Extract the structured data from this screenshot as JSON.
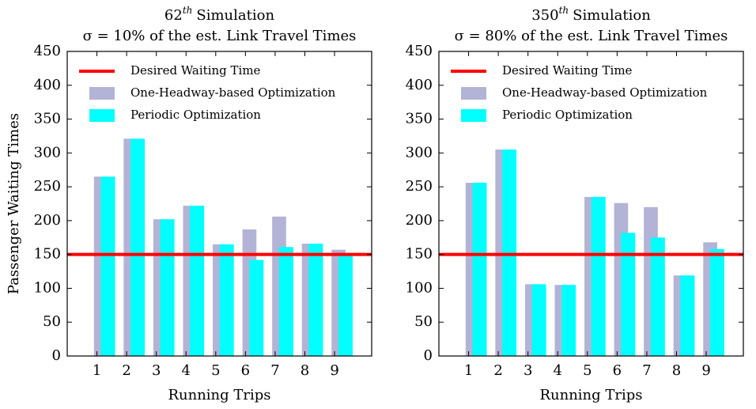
{
  "chart_data": [
    {
      "type": "bar",
      "title": [
        "62",
        "th",
        "Simulation"
      ],
      "subtitle": "σ = 10% of the est. Link Travel Times",
      "xlabel": "Running Trips",
      "ylabel": "Passenger Waiting Times",
      "x": [
        1,
        2,
        3,
        4,
        5,
        6,
        7,
        8,
        9
      ],
      "xlim": [
        0,
        10.25
      ],
      "xticks": [
        1,
        2,
        3,
        4,
        5,
        6,
        7,
        8,
        9
      ],
      "ylim": [
        0,
        450
      ],
      "yticks": [
        0,
        50,
        100,
        150,
        200,
        250,
        300,
        350,
        400,
        450
      ],
      "legend": "upper left",
      "reference_line": {
        "name": "Desired Waiting Time",
        "color": "#ff0000",
        "value": 150
      },
      "series": [
        {
          "name": "One-Headway-based Optimization",
          "color": "#b3b3d6",
          "values": [
            265,
            321,
            202,
            222,
            165,
            187,
            206,
            166,
            157
          ]
        },
        {
          "name": "Periodic Optimization",
          "color": "#00ffff",
          "values": [
            265,
            321,
            202,
            222,
            165,
            142,
            161,
            166,
            148
          ]
        }
      ]
    },
    {
      "type": "bar",
      "title": [
        "350",
        "th",
        "Simulation"
      ],
      "subtitle": "σ = 80% of the est. Link Travel Times",
      "xlabel": "Running Trips",
      "x": [
        1,
        2,
        3,
        4,
        5,
        6,
        7,
        8,
        9
      ],
      "xlim": [
        0,
        10.25
      ],
      "xticks": [
        1,
        2,
        3,
        4,
        5,
        6,
        7,
        8,
        9
      ],
      "ylim": [
        0,
        450
      ],
      "yticks": [
        0,
        50,
        100,
        150,
        200,
        250,
        300,
        350,
        400,
        450
      ],
      "legend": "upper left",
      "reference_line": {
        "name": "Desired Waiting Time",
        "color": "#ff0000",
        "value": 150
      },
      "series": [
        {
          "name": "One-Headway-based Optimization",
          "color": "#b3b3d6",
          "values": [
            256,
            305,
            106,
            105,
            235,
            226,
            220,
            119,
            168
          ]
        },
        {
          "name": "Periodic Optimization",
          "color": "#00ffff",
          "values": [
            256,
            305,
            106,
            105,
            235,
            182,
            175,
            119,
            158
          ]
        }
      ]
    }
  ]
}
